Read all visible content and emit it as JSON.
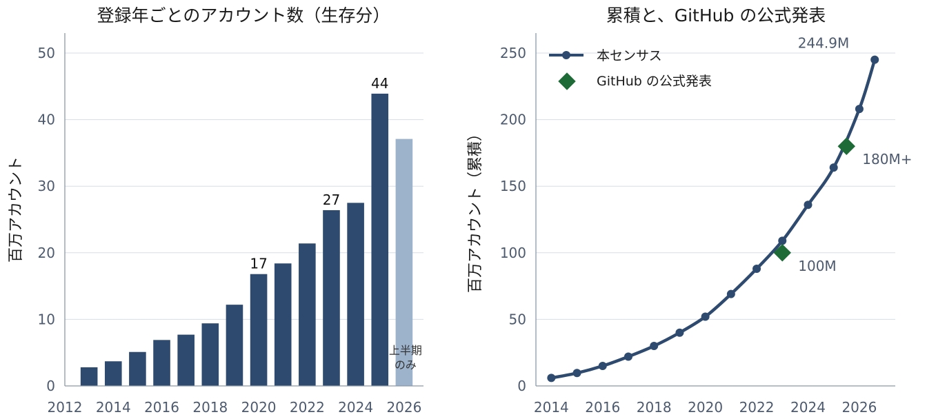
{
  "chart_data": [
    {
      "type": "bar",
      "title": "登録年ごとのアカウント数（生存分）",
      "xlabel": "",
      "ylabel": "百万アカウント",
      "x": [
        2013,
        2014,
        2015,
        2016,
        2017,
        2018,
        2019,
        2020,
        2021,
        2022,
        2023,
        2024,
        2025,
        2026
      ],
      "values": [
        2.8,
        3.7,
        5.1,
        6.9,
        7.7,
        9.4,
        12.2,
        16.8,
        18.4,
        21.4,
        26.4,
        27.5,
        43.9,
        37.1
      ],
      "bar_colors": [
        "#2e4a6e",
        "#2e4a6e",
        "#2e4a6e",
        "#2e4a6e",
        "#2e4a6e",
        "#2e4a6e",
        "#2e4a6e",
        "#2e4a6e",
        "#2e4a6e",
        "#2e4a6e",
        "#2e4a6e",
        "#2e4a6e",
        "#2e4a6e",
        "#9db3cc"
      ],
      "data_labels": [
        {
          "x": 2020,
          "text": "17"
        },
        {
          "x": 2023,
          "text": "27"
        },
        {
          "x": 2025,
          "text": "44"
        }
      ],
      "note": {
        "x": 2026,
        "lines": [
          "上半期",
          "のみ"
        ]
      },
      "xlim": [
        2012,
        2026.8
      ],
      "ylim": [
        0,
        53
      ],
      "xticks": [
        2012,
        2014,
        2016,
        2018,
        2020,
        2022,
        2024,
        2026
      ],
      "xtick_labels": [
        "2012",
        "2014",
        "2016",
        "2018",
        "2020",
        "2022",
        "2024",
        "2026"
      ],
      "yticks": [
        0,
        10,
        20,
        30,
        40,
        50
      ],
      "ytick_labels": [
        "0",
        "10",
        "20",
        "30",
        "40",
        "50"
      ],
      "grid": "horizontal"
    },
    {
      "type": "line",
      "title": "累積と、GitHub の公式発表",
      "xlabel": "",
      "ylabel": "百万アカウント（累積）",
      "series": [
        {
          "name": "本センサス",
          "x": [
            2014,
            2015,
            2016,
            2017,
            2018,
            2019,
            2020,
            2021,
            2022,
            2023,
            2024,
            2025,
            2026,
            2026.6
          ],
          "values": [
            6,
            9.7,
            15,
            22,
            30,
            40,
            52,
            69,
            88,
            109,
            136,
            164,
            208,
            245
          ]
        },
        {
          "name": "GitHub の公式発表",
          "x": [
            2023,
            2025.5
          ],
          "values": [
            100,
            180
          ]
        }
      ],
      "annotations": [
        {
          "text": "244.9M",
          "target": "series0-last"
        },
        {
          "text": "100M",
          "target": "series1-0"
        },
        {
          "text": "180M+",
          "target": "series1-1"
        }
      ],
      "legend_position": "top-left",
      "xlim": [
        2013.4,
        2027.4
      ],
      "ylim": [
        0,
        265
      ],
      "xticks": [
        2014,
        2016,
        2018,
        2020,
        2022,
        2024,
        2026
      ],
      "xtick_labels": [
        "2014",
        "2016",
        "2018",
        "2020",
        "2022",
        "2024",
        "2026"
      ],
      "yticks": [
        0,
        50,
        100,
        150,
        200,
        250
      ],
      "ytick_labels": [
        "0",
        "50",
        "100",
        "150",
        "200",
        "250"
      ],
      "grid": "horizontal",
      "line_color": "#2e4a6e",
      "marker_color": "#1e6b38",
      "official_text_color": "#1e6b38",
      "callout_text_color": "#3a5578"
    }
  ]
}
